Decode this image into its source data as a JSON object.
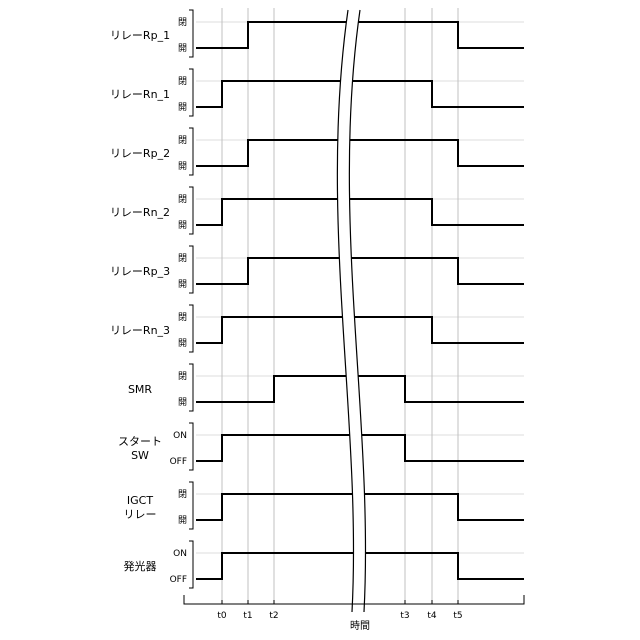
{
  "time_axis": {
    "title": "時間",
    "ticks": [
      "t0",
      "t1",
      "t2",
      "t3",
      "t4",
      "t5"
    ]
  },
  "signals": [
    {
      "name": "リレーRp_1",
      "high_label": "閉",
      "low_label": "開",
      "rise": "t1",
      "fall": "t5"
    },
    {
      "name": "リレーRn_1",
      "high_label": "閉",
      "low_label": "開",
      "rise": "t0",
      "fall": "t4"
    },
    {
      "name": "リレーRp_2",
      "high_label": "閉",
      "low_label": "開",
      "rise": "t1",
      "fall": "t5"
    },
    {
      "name": "リレーRn_2",
      "high_label": "閉",
      "low_label": "開",
      "rise": "t0",
      "fall": "t4"
    },
    {
      "name": "リレーRp_3",
      "high_label": "閉",
      "low_label": "開",
      "rise": "t1",
      "fall": "t5"
    },
    {
      "name": "リレーRn_3",
      "high_label": "閉",
      "low_label": "開",
      "rise": "t0",
      "fall": "t4"
    },
    {
      "name": "SMR",
      "high_label": "閉",
      "low_label": "開",
      "rise": "t2",
      "fall": "t3"
    },
    {
      "name": "スタート\nSW",
      "high_label": "ON",
      "low_label": "OFF",
      "rise": "t0",
      "fall": "t3"
    },
    {
      "name": "IGCT\nリレー",
      "high_label": "閉",
      "low_label": "開",
      "rise": "t0",
      "fall": "t5"
    },
    {
      "name": "発光器",
      "high_label": "ON",
      "low_label": "OFF",
      "rise": "t0",
      "fall": "t5"
    }
  ]
}
